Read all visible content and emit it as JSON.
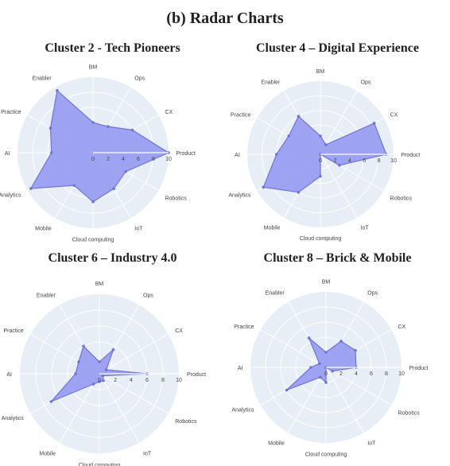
{
  "title": "(b) Radar Charts",
  "chart_data": [
    {
      "type": "radar",
      "title": "Cluster 2 - Tech Pioneers",
      "axes": [
        "Product",
        "CX",
        "Ops",
        "BM",
        "Enabler",
        "Practice",
        "AI",
        "Analytics",
        "Mobile",
        "Cloud computing",
        "IoT",
        "Robotics"
      ],
      "range": [
        0,
        10
      ],
      "ticks": [
        "0",
        "2",
        "4",
        "6",
        "8",
        "10"
      ],
      "values": [
        10,
        6,
        4,
        4,
        9.5,
        6.5,
        5.5,
        9.5,
        5,
        6.5,
        5.5,
        5
      ],
      "fill": "#8f95ee",
      "line": "#6f74d6",
      "bg": "#e8eef6"
    },
    {
      "type": "radar",
      "title": "Cluster 4 – Digital Experience",
      "axes": [
        "Product",
        "CX",
        "Ops",
        "BM",
        "Enabler",
        "Practice",
        "AI",
        "Analytics",
        "Mobile",
        "Cloud computing",
        "IoT",
        "Robotics"
      ],
      "range": [
        0,
        10
      ],
      "ticks": [
        "0",
        "2",
        "4",
        "6",
        "8",
        "10"
      ],
      "values": [
        9,
        8.5,
        1.5,
        2.5,
        6,
        5,
        6,
        9,
        6,
        3,
        0,
        3
      ],
      "fill": "#8f95ee",
      "line": "#6f74d6",
      "bg": "#e8eef6"
    },
    {
      "type": "radar",
      "title": "Cluster 6 – Industry 4.0",
      "axes": [
        "Product",
        "CX",
        "Ops",
        "BM",
        "Enabler",
        "Practice",
        "AI",
        "Analytics",
        "Mobile",
        "Cloud computing",
        "IoT",
        "Robotics"
      ],
      "range": [
        0,
        10
      ],
      "ticks": [
        "0",
        "2",
        "4",
        "6",
        "8",
        "10"
      ],
      "values": [
        6,
        1,
        3.5,
        1.5,
        4,
        3,
        3,
        7,
        1.5,
        1,
        1,
        0.5
      ],
      "fill": "#8f95ee",
      "line": "#6f74d6",
      "bg": "#e8eef6"
    },
    {
      "type": "radar",
      "title": "Cluster 8 – Brick & Mobile",
      "axes": [
        "Product",
        "CX",
        "Ops",
        "BM",
        "Enabler",
        "Practice",
        "AI",
        "Analytics",
        "Mobile",
        "Cloud computing",
        "IoT",
        "Robotics"
      ],
      "range": [
        0,
        10
      ],
      "ticks": [
        "0",
        "2",
        "4",
        "6",
        "8",
        "10"
      ],
      "values": [
        4,
        4.5,
        4,
        2,
        4.5,
        1,
        2,
        6,
        1.5,
        2,
        0,
        1
      ],
      "fill": "#8f95ee",
      "line": "#6f74d6",
      "bg": "#e8eef6"
    }
  ]
}
